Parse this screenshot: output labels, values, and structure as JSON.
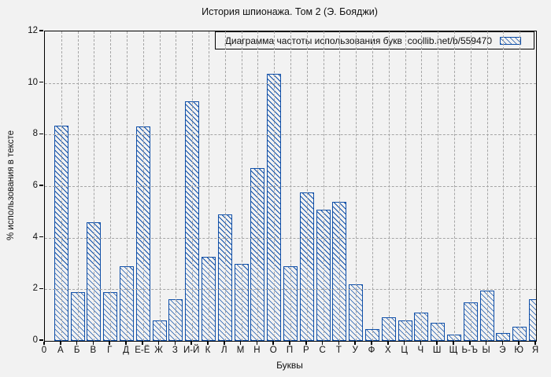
{
  "chart_data": {
    "type": "bar",
    "title": "История шпионажа. Том 2 (Э. Бояджи)",
    "legend_label": "Диаграмма частоты использования букв  coollib.net/b/559470",
    "xlabel": "Буквы",
    "ylabel": "% использования в тексте",
    "x_origin_label": "0",
    "categories": [
      "А",
      "Б",
      "В",
      "Г",
      "Д",
      "Е-Ё",
      "Ж",
      "З",
      "И-Й",
      "К",
      "Л",
      "М",
      "Н",
      "О",
      "П",
      "Р",
      "С",
      "Т",
      "У",
      "Ф",
      "Х",
      "Ц",
      "Ч",
      "Ш",
      "Щ",
      "Ь-Ъ",
      "Ы",
      "Э",
      "Ю",
      "Я"
    ],
    "values": [
      8.35,
      1.9,
      4.6,
      1.9,
      2.9,
      8.3,
      0.8,
      1.6,
      9.3,
      3.25,
      4.9,
      3.0,
      6.7,
      10.35,
      2.9,
      5.75,
      5.1,
      5.4,
      2.2,
      0.45,
      0.9,
      0.8,
      1.1,
      0.7,
      0.25,
      1.5,
      1.95,
      0.3,
      0.55,
      1.6
    ],
    "ylim": [
      0,
      12
    ],
    "yticks": [
      0,
      2,
      4,
      6,
      8,
      10,
      12
    ],
    "grid": true,
    "grid_style": "dashed",
    "legend_position": "top-right",
    "bar_style": "hatched-diagonal",
    "last_bar_clipped": true,
    "colors": {
      "bar_edge": "#0f4fa8",
      "background": "#f2f2f2",
      "grid": "#a5a5a5",
      "frame": "#000000",
      "text": "#111111"
    }
  }
}
